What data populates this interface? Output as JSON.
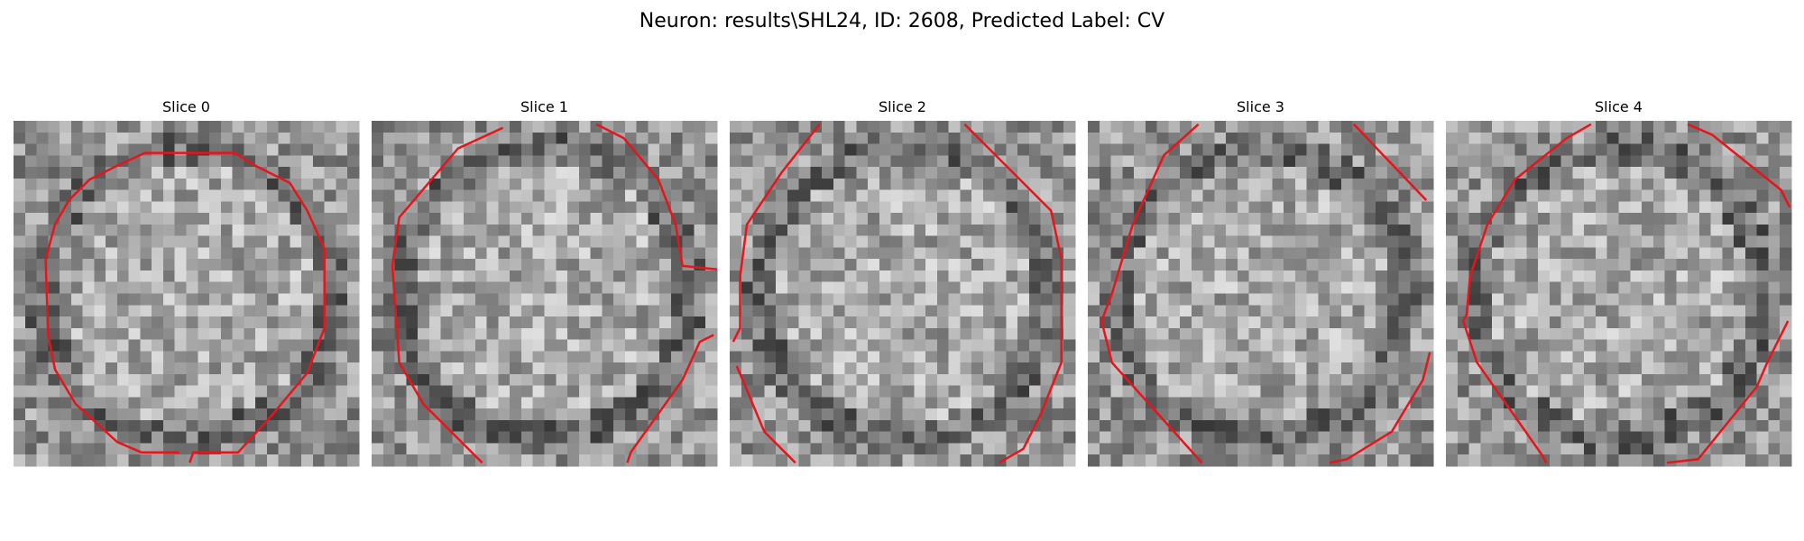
{
  "figure": {
    "title": "Neuron: results\\SHL24, ID: 2608, Predicted Label: CV",
    "panels": [
      {
        "title": "Slice 0"
      },
      {
        "title": "Slice 1"
      },
      {
        "title": "Slice 2"
      },
      {
        "title": "Slice 3"
      },
      {
        "title": "Slice 4"
      }
    ]
  }
}
